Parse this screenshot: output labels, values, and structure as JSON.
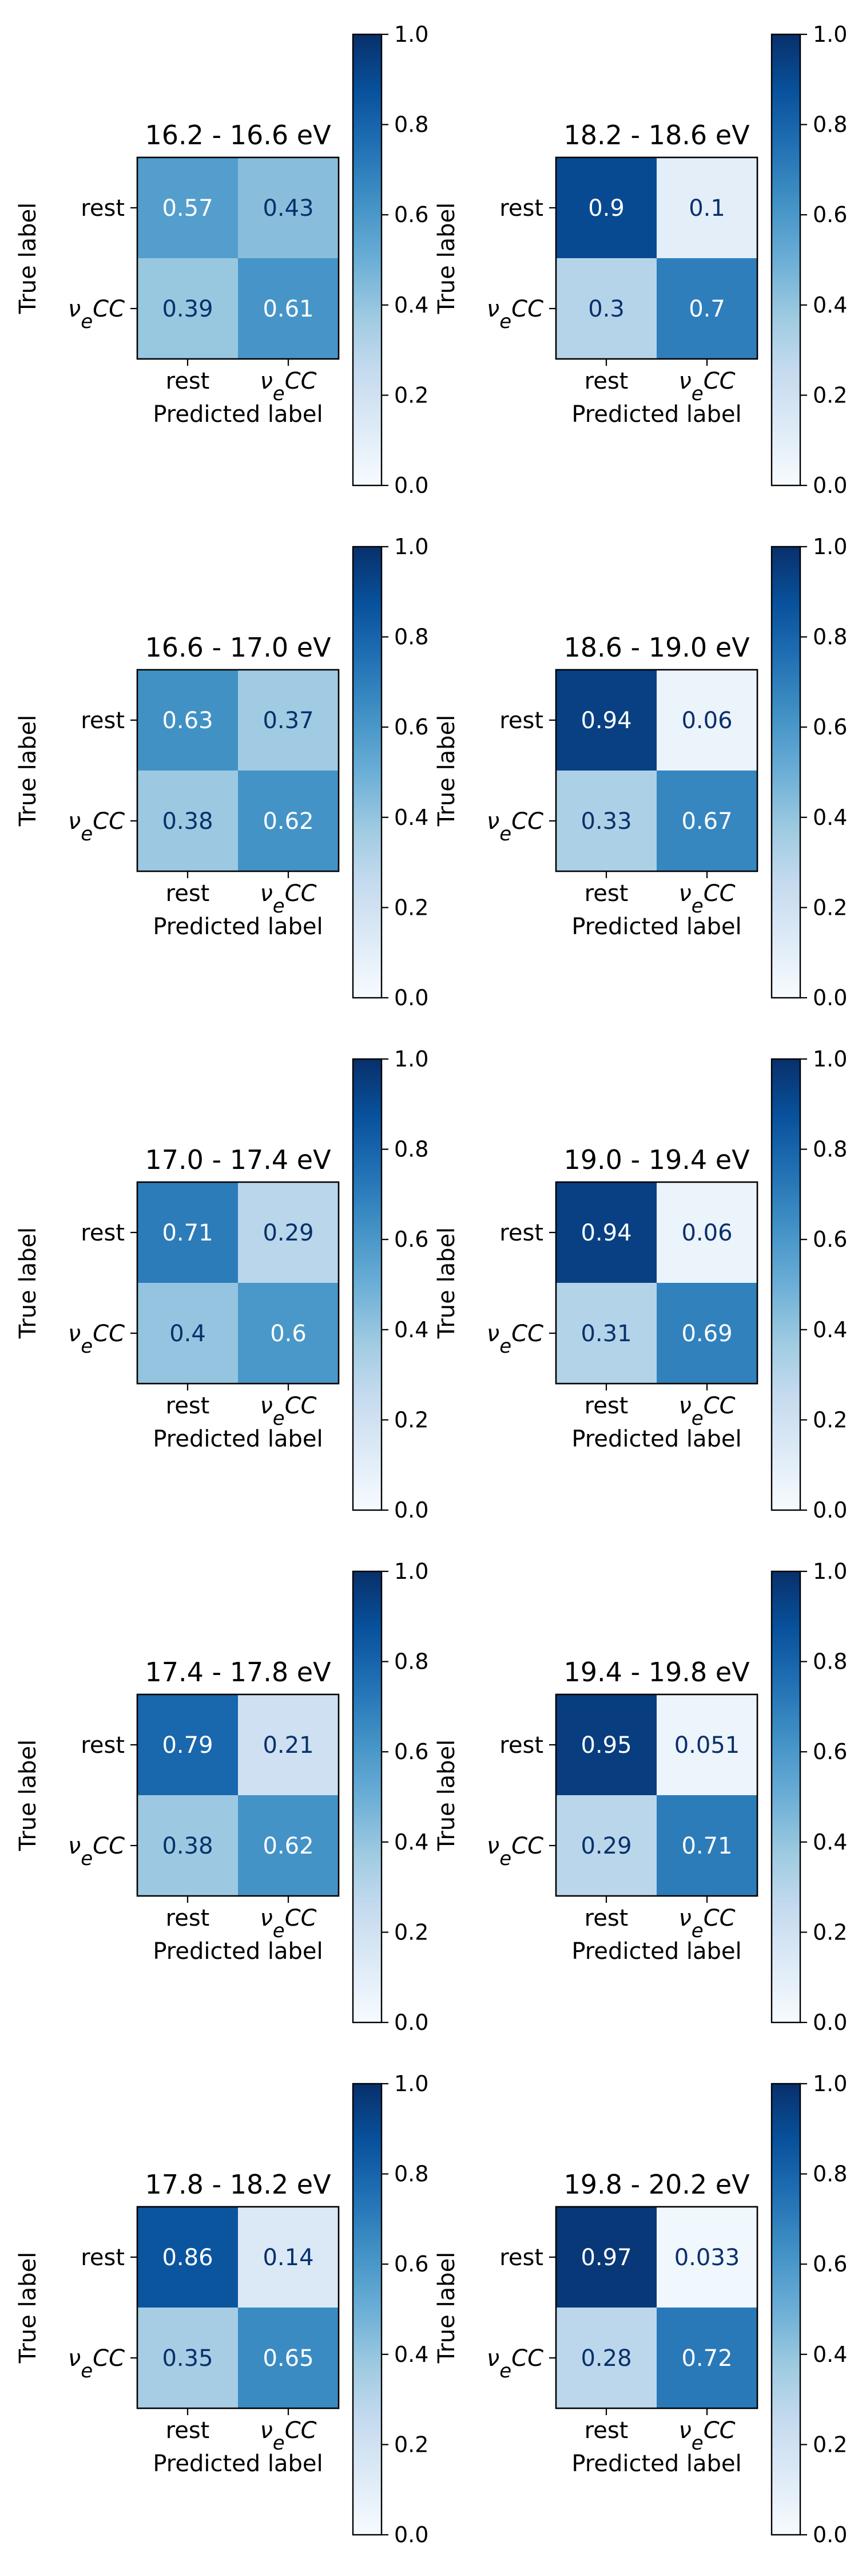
{
  "chart_data": [
    {
      "type": "heatmap",
      "title": "16.2 - 16.6 eV",
      "x_categories": [
        "rest",
        "νeCC"
      ],
      "y_categories": [
        "rest",
        "νeCC"
      ],
      "values": [
        [
          0.57,
          0.43
        ],
        [
          0.39,
          0.61
        ]
      ],
      "labels": [
        [
          "0.57",
          "0.43"
        ],
        [
          "0.39",
          "0.61"
        ]
      ],
      "xlabel": "Predicted label",
      "ylabel": "True label",
      "colorbar": {
        "range": [
          0.0,
          1.0
        ],
        "ticks": [
          "0.0",
          "0.2",
          "0.4",
          "0.6",
          "0.8",
          "1.0"
        ]
      },
      "colormap": "Blues"
    },
    {
      "type": "heatmap",
      "title": "18.2 - 18.6 eV",
      "x_categories": [
        "rest",
        "νeCC"
      ],
      "y_categories": [
        "rest",
        "νeCC"
      ],
      "values": [
        [
          0.9,
          0.1
        ],
        [
          0.3,
          0.7
        ]
      ],
      "labels": [
        [
          "0.9",
          "0.1"
        ],
        [
          "0.3",
          "0.7"
        ]
      ],
      "xlabel": "Predicted label",
      "ylabel": "True label",
      "colorbar": {
        "range": [
          0.0,
          1.0
        ],
        "ticks": [
          "0.0",
          "0.2",
          "0.4",
          "0.6",
          "0.8",
          "1.0"
        ]
      },
      "colormap": "Blues"
    },
    {
      "type": "heatmap",
      "title": "16.6 - 17.0 eV",
      "x_categories": [
        "rest",
        "νeCC"
      ],
      "y_categories": [
        "rest",
        "νeCC"
      ],
      "values": [
        [
          0.63,
          0.37
        ],
        [
          0.38,
          0.62
        ]
      ],
      "labels": [
        [
          "0.63",
          "0.37"
        ],
        [
          "0.38",
          "0.62"
        ]
      ],
      "xlabel": "Predicted label",
      "ylabel": "True label",
      "colorbar": {
        "range": [
          0.0,
          1.0
        ],
        "ticks": [
          "0.0",
          "0.2",
          "0.4",
          "0.6",
          "0.8",
          "1.0"
        ]
      },
      "colormap": "Blues"
    },
    {
      "type": "heatmap",
      "title": "18.6 - 19.0 eV",
      "x_categories": [
        "rest",
        "νeCC"
      ],
      "y_categories": [
        "rest",
        "νeCC"
      ],
      "values": [
        [
          0.94,
          0.06
        ],
        [
          0.33,
          0.67
        ]
      ],
      "labels": [
        [
          "0.94",
          "0.06"
        ],
        [
          "0.33",
          "0.67"
        ]
      ],
      "xlabel": "Predicted label",
      "ylabel": "True label",
      "colorbar": {
        "range": [
          0.0,
          1.0
        ],
        "ticks": [
          "0.0",
          "0.2",
          "0.4",
          "0.6",
          "0.8",
          "1.0"
        ]
      },
      "colormap": "Blues"
    },
    {
      "type": "heatmap",
      "title": "17.0 - 17.4 eV",
      "x_categories": [
        "rest",
        "νeCC"
      ],
      "y_categories": [
        "rest",
        "νeCC"
      ],
      "values": [
        [
          0.71,
          0.29
        ],
        [
          0.4,
          0.6
        ]
      ],
      "labels": [
        [
          "0.71",
          "0.29"
        ],
        [
          "0.4",
          "0.6"
        ]
      ],
      "xlabel": "Predicted label",
      "ylabel": "True label",
      "colorbar": {
        "range": [
          0.0,
          1.0
        ],
        "ticks": [
          "0.0",
          "0.2",
          "0.4",
          "0.6",
          "0.8",
          "1.0"
        ]
      },
      "colormap": "Blues"
    },
    {
      "type": "heatmap",
      "title": "19.0 - 19.4 eV",
      "x_categories": [
        "rest",
        "νeCC"
      ],
      "y_categories": [
        "rest",
        "νeCC"
      ],
      "values": [
        [
          0.94,
          0.06
        ],
        [
          0.31,
          0.69
        ]
      ],
      "labels": [
        [
          "0.94",
          "0.06"
        ],
        [
          "0.31",
          "0.69"
        ]
      ],
      "xlabel": "Predicted label",
      "ylabel": "True label",
      "colorbar": {
        "range": [
          0.0,
          1.0
        ],
        "ticks": [
          "0.0",
          "0.2",
          "0.4",
          "0.6",
          "0.8",
          "1.0"
        ]
      },
      "colormap": "Blues"
    },
    {
      "type": "heatmap",
      "title": "17.4 - 17.8 eV",
      "x_categories": [
        "rest",
        "νeCC"
      ],
      "y_categories": [
        "rest",
        "νeCC"
      ],
      "values": [
        [
          0.79,
          0.21
        ],
        [
          0.38,
          0.62
        ]
      ],
      "labels": [
        [
          "0.79",
          "0.21"
        ],
        [
          "0.38",
          "0.62"
        ]
      ],
      "xlabel": "Predicted label",
      "ylabel": "True label",
      "colorbar": {
        "range": [
          0.0,
          1.0
        ],
        "ticks": [
          "0.0",
          "0.2",
          "0.4",
          "0.6",
          "0.8",
          "1.0"
        ]
      },
      "colormap": "Blues"
    },
    {
      "type": "heatmap",
      "title": "19.4 - 19.8 eV",
      "x_categories": [
        "rest",
        "νeCC"
      ],
      "y_categories": [
        "rest",
        "νeCC"
      ],
      "values": [
        [
          0.95,
          0.051
        ],
        [
          0.29,
          0.71
        ]
      ],
      "labels": [
        [
          "0.95",
          "0.051"
        ],
        [
          "0.29",
          "0.71"
        ]
      ],
      "xlabel": "Predicted label",
      "ylabel": "True label",
      "colorbar": {
        "range": [
          0.0,
          1.0
        ],
        "ticks": [
          "0.0",
          "0.2",
          "0.4",
          "0.6",
          "0.8",
          "1.0"
        ]
      },
      "colormap": "Blues"
    },
    {
      "type": "heatmap",
      "title": "17.8 - 18.2 eV",
      "x_categories": [
        "rest",
        "νeCC"
      ],
      "y_categories": [
        "rest",
        "νeCC"
      ],
      "values": [
        [
          0.86,
          0.14
        ],
        [
          0.35,
          0.65
        ]
      ],
      "labels": [
        [
          "0.86",
          "0.14"
        ],
        [
          "0.35",
          "0.65"
        ]
      ],
      "xlabel": "Predicted label",
      "ylabel": "True label",
      "colorbar": {
        "range": [
          0.0,
          1.0
        ],
        "ticks": [
          "0.0",
          "0.2",
          "0.4",
          "0.6",
          "0.8",
          "1.0"
        ]
      },
      "colormap": "Blues"
    },
    {
      "type": "heatmap",
      "title": "19.8 - 20.2 eV",
      "x_categories": [
        "rest",
        "νeCC"
      ],
      "y_categories": [
        "rest",
        "νeCC"
      ],
      "values": [
        [
          0.97,
          0.033
        ],
        [
          0.28,
          0.72
        ]
      ],
      "labels": [
        [
          "0.97",
          "0.033"
        ],
        [
          "0.28",
          "0.72"
        ]
      ],
      "xlabel": "Predicted label",
      "ylabel": "True label",
      "colorbar": {
        "range": [
          0.0,
          1.0
        ],
        "ticks": [
          "0.0",
          "0.2",
          "0.4",
          "0.6",
          "0.8",
          "1.0"
        ]
      },
      "colormap": "Blues"
    }
  ]
}
